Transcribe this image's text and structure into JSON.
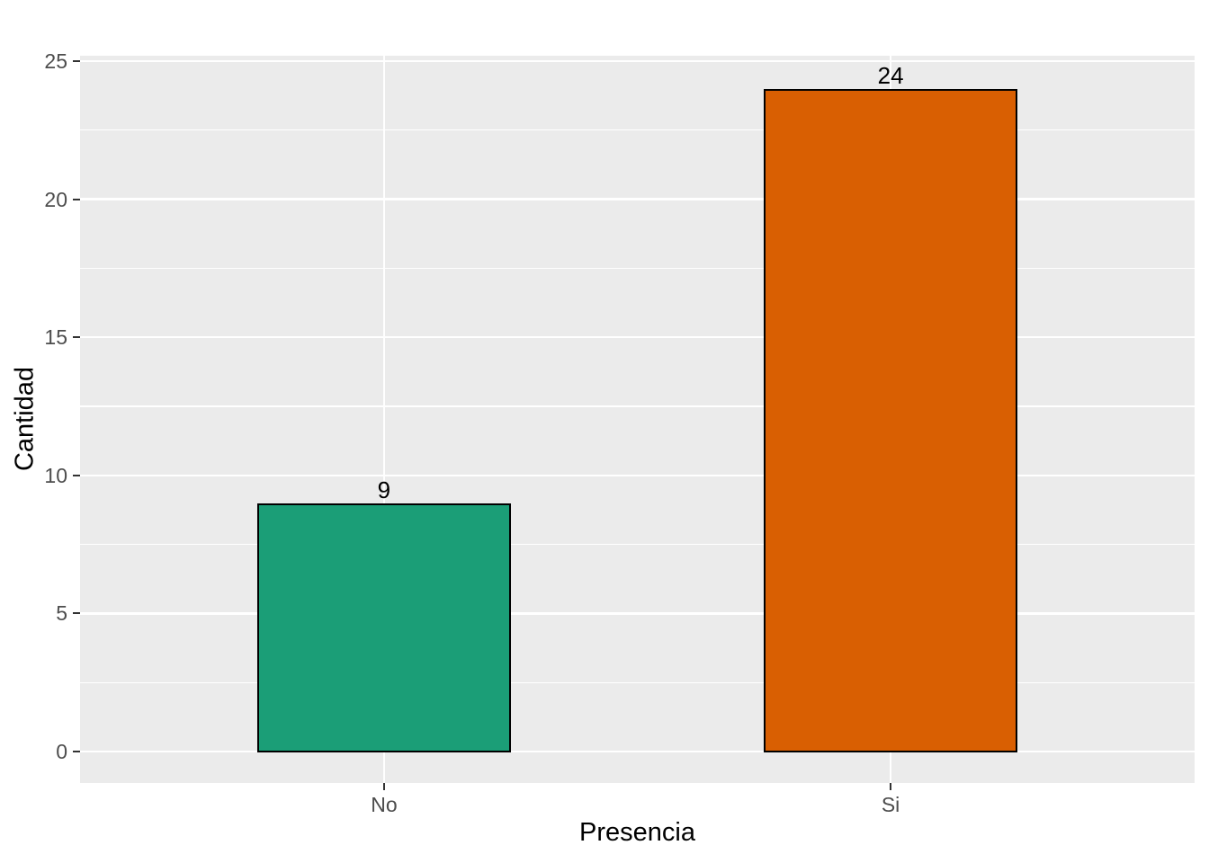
{
  "chart_data": {
    "type": "bar",
    "title": "",
    "xlabel": "Presencia",
    "ylabel": "Cantidad",
    "categories": [
      "No",
      "Si"
    ],
    "values": [
      9,
      24
    ],
    "bar_labels": [
      "9",
      "24"
    ],
    "bar_colors": [
      "#1B9E77",
      "#D95F02"
    ],
    "bar_border_color": "#000000",
    "bar_label_color": "#000000",
    "yticks": [
      0,
      5,
      10,
      15,
      20,
      25
    ],
    "yticks_minor": [
      2.5,
      7.5,
      12.5,
      17.5,
      22.5
    ],
    "ylim": [
      0,
      25
    ],
    "grid": true,
    "legend_position": "none",
    "bar_width_fraction": 0.5,
    "panel_background": "#EBEBEB",
    "gridline_color": "#FFFFFF",
    "tick_mark_color": "#333333",
    "tick_label_color": "#4D4D4D",
    "axis_title_color": "#000000"
  }
}
